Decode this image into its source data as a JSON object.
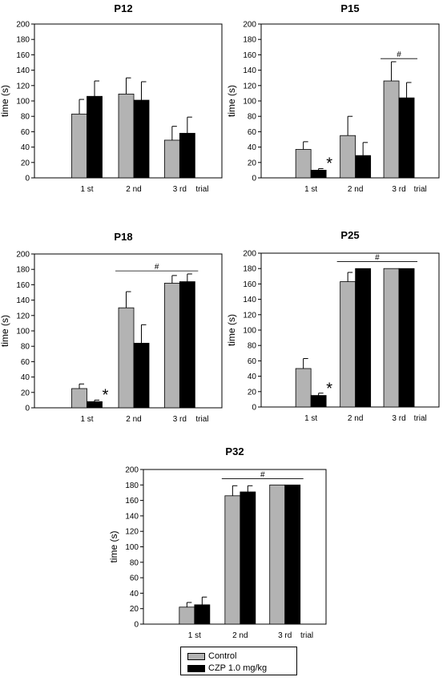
{
  "colors": {
    "control": "#b3b3b3",
    "czp": "#000000",
    "axis": "#000000"
  },
  "legend": {
    "items": [
      {
        "label": "Control",
        "color": "#b3b3b3"
      },
      {
        "label": "CZP 1.0 mg/kg",
        "color": "#000000"
      }
    ]
  },
  "chart_data": [
    {
      "type": "bar",
      "title": "P12",
      "ylabel": "time (s)",
      "xlabel": "",
      "trial_label": "trial",
      "categories": [
        "1 st",
        "2 nd",
        "3 rd"
      ],
      "ylim": [
        0,
        200
      ],
      "yticks": [
        0,
        20,
        40,
        60,
        80,
        100,
        120,
        140,
        160,
        180,
        200
      ],
      "series": [
        {
          "name": "Control",
          "values": [
            83,
            109,
            49
          ],
          "errors": [
            19,
            21,
            18
          ]
        },
        {
          "name": "CZP 1.0 mg/kg",
          "values": [
            106,
            101,
            58
          ],
          "errors": [
            20,
            24,
            21
          ]
        }
      ],
      "stars": [],
      "hash": null
    },
    {
      "type": "bar",
      "title": "P15",
      "ylabel": "time (s)",
      "xlabel": "",
      "trial_label": "trial",
      "categories": [
        "1 st",
        "2 nd",
        "3 rd"
      ],
      "ylim": [
        0,
        200
      ],
      "yticks": [
        0,
        20,
        40,
        60,
        80,
        100,
        120,
        140,
        160,
        180,
        200
      ],
      "series": [
        {
          "name": "Control",
          "values": [
            37,
            55,
            126
          ],
          "errors": [
            10,
            25,
            25
          ]
        },
        {
          "name": "CZP 1.0 mg/kg",
          "values": [
            10,
            29,
            104
          ],
          "errors": [
            2,
            17,
            20
          ]
        }
      ],
      "stars": [
        {
          "index": 0,
          "label": "*"
        }
      ],
      "hash": {
        "label": "#",
        "from": 2,
        "to": 2,
        "level": 155
      }
    },
    {
      "type": "bar",
      "title": "P18",
      "ylabel": "time (s)",
      "xlabel": "",
      "trial_label": "trial",
      "categories": [
        "1 st",
        "2 nd",
        "3 rd"
      ],
      "ylim": [
        0,
        200
      ],
      "yticks": [
        0,
        20,
        40,
        60,
        80,
        100,
        120,
        140,
        160,
        180,
        200
      ],
      "series": [
        {
          "name": "Control",
          "values": [
            25,
            130,
            162
          ],
          "errors": [
            6,
            21,
            10
          ]
        },
        {
          "name": "CZP 1.0 mg/kg",
          "values": [
            8,
            84,
            164
          ],
          "errors": [
            2,
            24,
            10
          ]
        }
      ],
      "stars": [
        {
          "index": 0,
          "label": "*"
        }
      ],
      "hash": {
        "label": "#",
        "from": 1,
        "to": 2,
        "level": 178
      }
    },
    {
      "type": "bar",
      "title": "P25",
      "ylabel": "time (s)",
      "xlabel": "",
      "trial_label": "trial",
      "categories": [
        "1 st",
        "2 nd",
        "3 rd"
      ],
      "ylim": [
        0,
        200
      ],
      "yticks": [
        0,
        20,
        40,
        60,
        80,
        100,
        120,
        140,
        160,
        180,
        200
      ],
      "series": [
        {
          "name": "Control",
          "values": [
            50,
            163,
            180
          ],
          "errors": [
            13,
            12,
            0
          ]
        },
        {
          "name": "CZP 1.0 mg/kg",
          "values": [
            15,
            180,
            180
          ],
          "errors": [
            3,
            0,
            0
          ]
        }
      ],
      "stars": [
        {
          "index": 0,
          "label": "*"
        }
      ],
      "hash": {
        "label": "#",
        "from": 1,
        "to": 2,
        "level": 189
      }
    },
    {
      "type": "bar",
      "title": "P32",
      "ylabel": "time (s)",
      "xlabel": "",
      "trial_label": "trial",
      "categories": [
        "1 st",
        "2 nd",
        "3 rd"
      ],
      "ylim": [
        0,
        200
      ],
      "yticks": [
        0,
        20,
        40,
        60,
        80,
        100,
        120,
        140,
        160,
        180,
        200
      ],
      "series": [
        {
          "name": "Control",
          "values": [
            22,
            166,
            180
          ],
          "errors": [
            6,
            13,
            0
          ]
        },
        {
          "name": "CZP 1.0 mg/kg",
          "values": [
            25,
            171,
            180
          ],
          "errors": [
            10,
            8,
            0
          ]
        }
      ],
      "stars": [],
      "hash": {
        "label": "#",
        "from": 1,
        "to": 2,
        "level": 188
      }
    }
  ]
}
